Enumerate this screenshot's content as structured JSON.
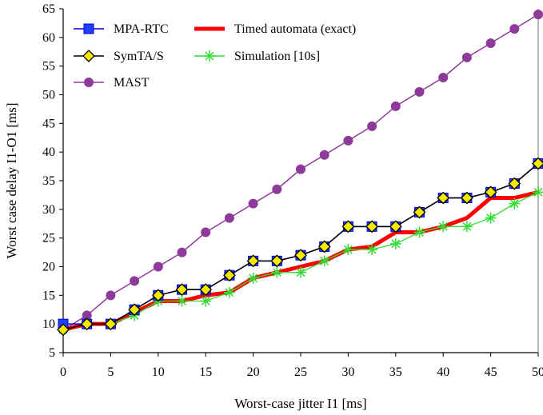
{
  "chart_data": {
    "type": "line",
    "title": "",
    "xlabel": "Worst-case jitter I1 [ms]",
    "ylabel": "Worst case delay I1-O1 [ms]",
    "xlim": [
      0,
      50
    ],
    "ylim": [
      5,
      65
    ],
    "xticks": [
      0,
      5,
      10,
      15,
      20,
      25,
      30,
      35,
      40,
      45,
      50
    ],
    "yticks": [
      5,
      10,
      15,
      20,
      25,
      30,
      35,
      40,
      45,
      50,
      55,
      60,
      65
    ],
    "grid": false,
    "legend_position": "top-left",
    "series": [
      {
        "name": "MPA-RTC",
        "color": "#1f3fff",
        "line_color": "#0000cc",
        "marker": "square",
        "x": [
          0,
          2.5,
          5,
          7.5,
          10,
          12.5,
          15,
          17.5,
          20,
          22.5,
          25,
          27.5,
          30,
          32.5,
          35,
          37.5,
          40,
          42.5,
          45,
          47.5,
          50
        ],
        "y": [
          10,
          10,
          10,
          12.5,
          15,
          16,
          16,
          18.5,
          21,
          21,
          22,
          23.5,
          27,
          27,
          27,
          29.5,
          32,
          32,
          33,
          34.5,
          38
        ]
      },
      {
        "name": "SymTA/S",
        "color": "#f5e800",
        "line_color": "#000000",
        "marker": "diamond",
        "x": [
          0,
          2.5,
          5,
          7.5,
          10,
          12.5,
          15,
          17.5,
          20,
          22.5,
          25,
          27.5,
          30,
          32.5,
          35,
          37.5,
          40,
          42.5,
          45,
          47.5,
          50
        ],
        "y": [
          9,
          10,
          10,
          12.5,
          15,
          16,
          16,
          18.5,
          21,
          21,
          22,
          23.5,
          27,
          27,
          27,
          29.5,
          32,
          32,
          33,
          34.5,
          38
        ]
      },
      {
        "name": "MAST",
        "color": "#8e3a9a",
        "line_color": "#8e3a9a",
        "marker": "circle",
        "x": [
          0,
          2.5,
          5,
          7.5,
          10,
          12.5,
          15,
          17.5,
          20,
          22.5,
          25,
          27.5,
          30,
          32.5,
          35,
          37.5,
          40,
          42.5,
          45,
          47.5,
          50
        ],
        "y": [
          9,
          11.5,
          15,
          17.5,
          20,
          22.5,
          26,
          28.5,
          31,
          33.5,
          37,
          39.5,
          42,
          44.5,
          48,
          50.5,
          53,
          56.5,
          59,
          61.5,
          64
        ]
      },
      {
        "name": "Timed automata (exact)",
        "color": "#ff0000",
        "line_color": "#ff0000",
        "marker": "none",
        "x": [
          0,
          2.5,
          5,
          7.5,
          10,
          12.5,
          15,
          17.5,
          20,
          22.5,
          25,
          27.5,
          30,
          32.5,
          35,
          37.5,
          40,
          42.5,
          45,
          47.5,
          50
        ],
        "y": [
          9,
          10,
          10,
          12,
          14,
          14,
          15,
          15.5,
          18,
          19,
          20,
          21,
          23,
          23.5,
          26,
          26,
          27,
          28.5,
          32,
          32,
          33
        ]
      },
      {
        "name": "Simulation [10s]",
        "color": "#33dd33",
        "line_color": "#33dd33",
        "marker": "asterisk",
        "x": [
          0,
          2.5,
          5,
          7.5,
          10,
          12.5,
          15,
          17.5,
          20,
          22.5,
          25,
          27.5,
          30,
          32.5,
          35,
          37.5,
          40,
          42.5,
          45,
          47.5,
          50
        ],
        "y": [
          9,
          10,
          10,
          11.5,
          14,
          14,
          14,
          15.5,
          18,
          19,
          19,
          21,
          23,
          23,
          24,
          26,
          27,
          27,
          28.5,
          31,
          33
        ]
      }
    ]
  }
}
